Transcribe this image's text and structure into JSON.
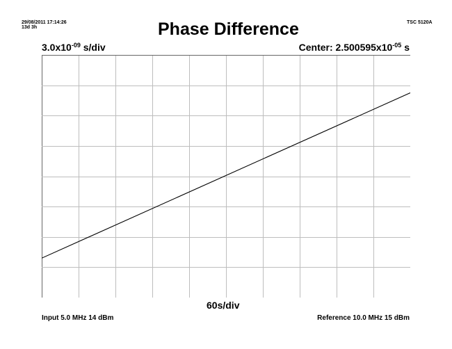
{
  "header": {
    "timestamp": "29/08/2011 17:14:26",
    "elapsed": "13d 3h",
    "instrument": "TSC 5120A"
  },
  "chart_data": {
    "type": "line",
    "title": "Phase Difference",
    "y_scale": {
      "mantissa": "3.0x10",
      "exponent": "-09",
      "unit": " s/div"
    },
    "center": {
      "label": "Center: ",
      "mantissa": "2.500595x10",
      "exponent": "-05",
      "unit": " s"
    },
    "x_scale": "60s/div",
    "grid": true,
    "x_divisions": 10,
    "y_divisions": 8,
    "xlim": [
      0,
      10
    ],
    "ylim": [
      -4,
      4
    ],
    "x_unit": "div",
    "y_unit": "div",
    "series": [
      {
        "x": [
          0,
          10
        ],
        "y": [
          -2.7,
          2.75
        ]
      }
    ]
  },
  "footer": {
    "input": "Input 5.0 MHz 14 dBm",
    "reference": "Reference 10.0 MHz 15 dBm"
  }
}
